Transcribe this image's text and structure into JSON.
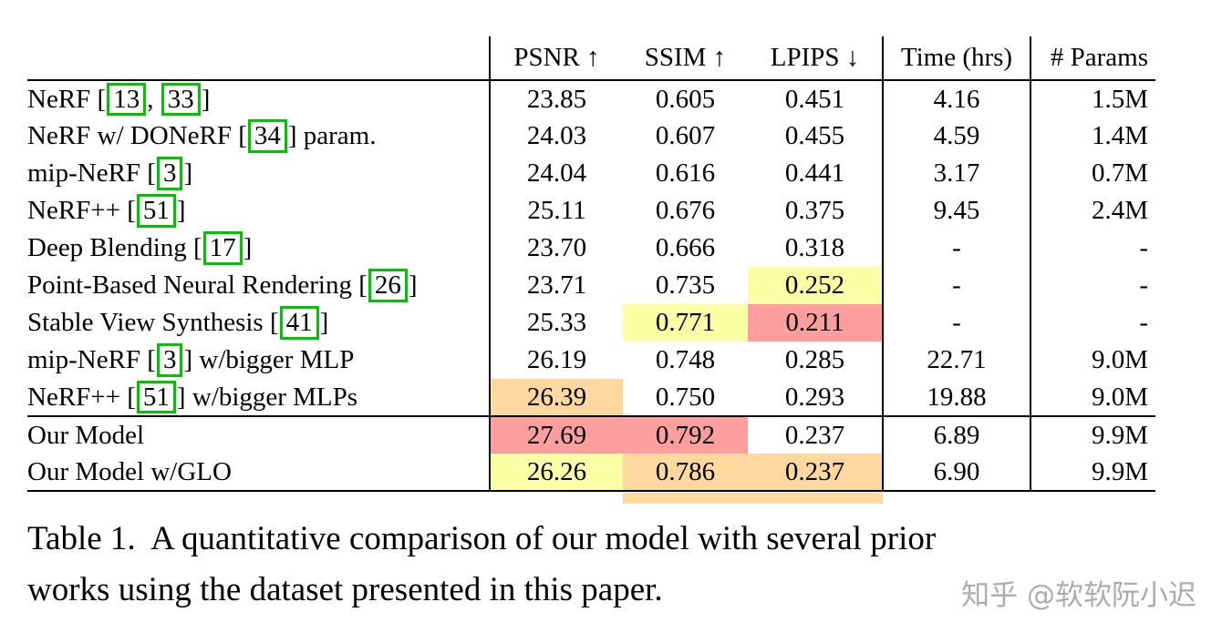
{
  "colors": {
    "highlight_red": "#ff9e9e",
    "highlight_orange": "#ffd8a0",
    "highlight_yellow": "#fbffa6",
    "cite_box_green": "#00c400"
  },
  "table": {
    "header": {
      "psnr": "PSNR ↑",
      "ssim": "SSIM ↑",
      "lpips": "LPIPS ↓",
      "time": "Time (hrs)",
      "params": "# Params"
    },
    "rows": [
      {
        "label_segments": [
          {
            "text": "NeRF ["
          },
          {
            "text": "13",
            "cite": true
          },
          {
            "text": ", "
          },
          {
            "text": "33",
            "cite": true
          },
          {
            "text": "]"
          }
        ],
        "psnr": "23.85",
        "ssim": "0.605",
        "lpips": "0.451",
        "time": "4.16",
        "params": "1.5M",
        "highlights": {}
      },
      {
        "label_segments": [
          {
            "text": "NeRF w/ DONeRF ["
          },
          {
            "text": "34",
            "cite": true
          },
          {
            "text": "] param."
          }
        ],
        "psnr": "24.03",
        "ssim": "0.607",
        "lpips": "0.455",
        "time": "4.59",
        "params": "1.4M",
        "highlights": {}
      },
      {
        "label_segments": [
          {
            "text": "mip-NeRF ["
          },
          {
            "text": "3",
            "cite": true
          },
          {
            "text": "]"
          }
        ],
        "psnr": "24.04",
        "ssim": "0.616",
        "lpips": "0.441",
        "time": "3.17",
        "params": "0.7M",
        "highlights": {}
      },
      {
        "label_segments": [
          {
            "text": "NeRF++ ["
          },
          {
            "text": "51",
            "cite": true
          },
          {
            "text": "]"
          }
        ],
        "psnr": "25.11",
        "ssim": "0.676",
        "lpips": "0.375",
        "time": "9.45",
        "params": "2.4M",
        "highlights": {}
      },
      {
        "label_segments": [
          {
            "text": "Deep Blending ["
          },
          {
            "text": "17",
            "cite": true
          },
          {
            "text": "]"
          }
        ],
        "psnr": "23.70",
        "ssim": "0.666",
        "lpips": "0.318",
        "time": "-",
        "params": "-",
        "highlights": {}
      },
      {
        "label_segments": [
          {
            "text": "Point-Based Neural Rendering ["
          },
          {
            "text": "26",
            "cite": true
          },
          {
            "text": "]"
          }
        ],
        "psnr": "23.71",
        "ssim": "0.735",
        "lpips": "0.252",
        "time": "-",
        "params": "-",
        "highlights": {
          "lpips": "yellow"
        }
      },
      {
        "label_segments": [
          {
            "text": "Stable View Synthesis ["
          },
          {
            "text": "41",
            "cite": true
          },
          {
            "text": "]"
          }
        ],
        "psnr": "25.33",
        "ssim": "0.771",
        "lpips": "0.211",
        "time": "-",
        "params": "-",
        "highlights": {
          "ssim": "yellow",
          "lpips": "red"
        }
      },
      {
        "label_segments": [
          {
            "text": "mip-NeRF ["
          },
          {
            "text": "3",
            "cite": true
          },
          {
            "text": "] w/bigger MLP"
          }
        ],
        "psnr": "26.19",
        "ssim": "0.748",
        "lpips": "0.285",
        "time": "22.71",
        "params": "9.0M",
        "highlights": {}
      },
      {
        "label_segments": [
          {
            "text": "NeRF++ ["
          },
          {
            "text": "51",
            "cite": true
          },
          {
            "text": "] w/bigger MLPs"
          }
        ],
        "psnr": "26.39",
        "ssim": "0.750",
        "lpips": "0.293",
        "time": "19.88",
        "params": "9.0M",
        "highlights": {
          "psnr": "orange"
        }
      },
      {
        "rule_above": true,
        "label_segments": [
          {
            "text": "Our Model"
          }
        ],
        "psnr": "27.69",
        "ssim": "0.792",
        "lpips": "0.237",
        "time": "6.89",
        "params": "9.9M",
        "highlights": {
          "psnr": "red",
          "ssim": "red"
        }
      },
      {
        "label_segments": [
          {
            "text": "Our Model w/GLO"
          }
        ],
        "psnr": "26.26",
        "ssim": "0.786",
        "lpips": "0.237",
        "time": "6.90",
        "params": "9.9M",
        "highlights": {
          "psnr": "yellow",
          "ssim": "orange",
          "lpips": "orange"
        }
      }
    ]
  },
  "caption": {
    "line1": "Table 1.  A quantitative comparison of our model with several prior",
    "line2": "works using the dataset presented in this paper."
  },
  "watermark": "知乎 @软软阮小迟"
}
